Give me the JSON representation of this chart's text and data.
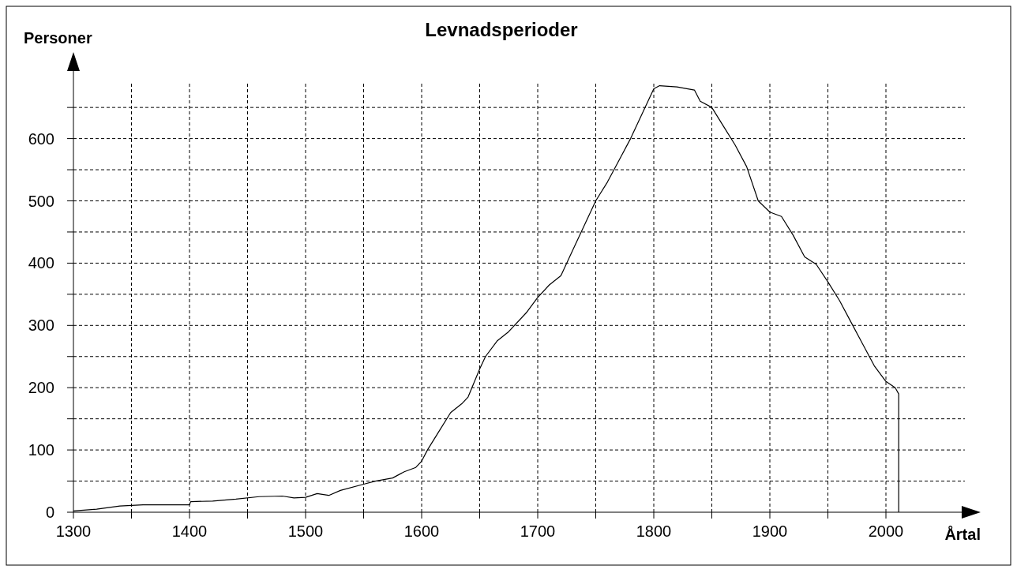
{
  "chart_data": {
    "type": "line",
    "title": "Levnadsperioder",
    "xlabel": "Årtal",
    "ylabel": "Personer",
    "xlim": [
      1300,
      2068
    ],
    "ylim": [
      0,
      690
    ],
    "xticks": [
      1300,
      {
        "value": 1350,
        "label": null
      },
      1400,
      {
        "value": 1450,
        "label": null
      },
      1500,
      {
        "value": 1550,
        "label": null
      },
      1600,
      {
        "value": 1650,
        "label": null
      },
      1700,
      {
        "value": 1750,
        "label": null
      },
      1800,
      {
        "value": 1850,
        "label": null
      },
      1900,
      {
        "value": 1950,
        "label": null
      },
      2000
    ],
    "yticks": [
      0,
      {
        "value": 50,
        "label": null
      },
      100,
      {
        "value": 150,
        "label": null
      },
      200,
      {
        "value": 250,
        "label": null
      },
      300,
      {
        "value": 350,
        "label": null
      },
      400,
      {
        "value": 450,
        "label": null
      },
      500,
      {
        "value": 550,
        "label": null
      },
      600,
      {
        "value": 650,
        "label": null
      }
    ],
    "grid": true,
    "series": [
      {
        "color": "#000000",
        "x": [
          1300,
          1320,
          1340,
          1360,
          1400,
          1401,
          1420,
          1440,
          1460,
          1480,
          1490,
          1500,
          1510,
          1520,
          1530,
          1550,
          1560,
          1575,
          1585,
          1595,
          1600,
          1605,
          1615,
          1625,
          1635,
          1640,
          1650,
          1655,
          1665,
          1675,
          1690,
          1700,
          1710,
          1720,
          1730,
          1740,
          1750,
          1760,
          1770,
          1780,
          1790,
          1800,
          1805,
          1820,
          1835,
          1840,
          1850,
          1860,
          1870,
          1880,
          1890,
          1900,
          1910,
          1920,
          1930,
          1940,
          1950,
          1960,
          1970,
          1980,
          1990,
          2000,
          2008,
          2011,
          2011
        ],
        "values": [
          2,
          5,
          10,
          12,
          12,
          17,
          18,
          21,
          25,
          26,
          23,
          24,
          30,
          27,
          35,
          45,
          50,
          55,
          65,
          72,
          82,
          100,
          130,
          160,
          175,
          185,
          230,
          250,
          275,
          290,
          320,
          345,
          365,
          380,
          420,
          460,
          500,
          530,
          565,
          600,
          640,
          680,
          685,
          683,
          678,
          660,
          650,
          620,
          590,
          555,
          500,
          482,
          475,
          445,
          410,
          398,
          370,
          340,
          305,
          270,
          235,
          210,
          200,
          190,
          0
        ]
      }
    ]
  }
}
